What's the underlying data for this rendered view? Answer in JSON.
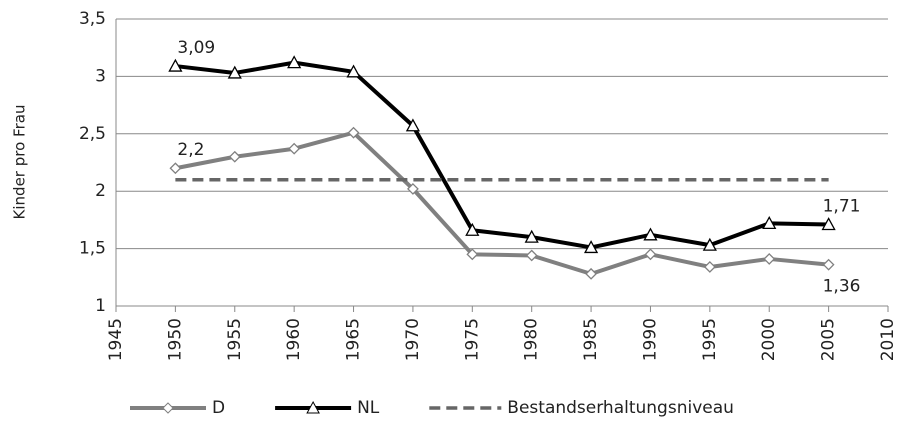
{
  "chart_data": {
    "type": "line",
    "ylabel": "Kinder pro Frau",
    "x": [
      1950,
      1955,
      1960,
      1965,
      1970,
      1975,
      1980,
      1985,
      1990,
      1995,
      2000,
      2005
    ],
    "xlim": [
      1945,
      2010
    ],
    "xticks": [
      1945,
      1950,
      1955,
      1960,
      1965,
      1970,
      1975,
      1980,
      1985,
      1990,
      1995,
      2000,
      2005,
      2010
    ],
    "ylim": [
      1,
      3.5
    ],
    "yticks": [
      1,
      {
        "value": 1.5,
        "label": "1,5"
      },
      2,
      {
        "value": 2.5,
        "label": "2,5"
      },
      3,
      {
        "value": 3.5,
        "label": "3,5"
      }
    ],
    "grid": true,
    "legend": "bottom",
    "series": [
      {
        "name": "D",
        "color": "#808080",
        "marker": "diamond",
        "dashed": false,
        "values": [
          2.2,
          2.3,
          2.37,
          2.51,
          2.02,
          1.45,
          1.44,
          1.28,
          1.45,
          1.34,
          1.41,
          1.36
        ],
        "value_labels": [
          "2,2",
          null,
          null,
          null,
          null,
          null,
          null,
          null,
          null,
          null,
          null,
          "1,36"
        ]
      },
      {
        "name": "NL",
        "color": "#000000",
        "marker": "triangle",
        "dashed": false,
        "values": [
          3.09,
          3.03,
          3.12,
          3.04,
          2.57,
          1.66,
          1.6,
          1.51,
          1.62,
          1.53,
          1.72,
          1.71
        ],
        "value_labels": [
          "3,09",
          null,
          null,
          null,
          null,
          null,
          null,
          null,
          null,
          null,
          null,
          "1,71"
        ]
      },
      {
        "name": "Bestandserhaltungsniveau",
        "color": "#666666",
        "marker": null,
        "dashed": true,
        "values": [
          2.1,
          2.1,
          2.1,
          2.1,
          2.1,
          2.1,
          2.1,
          2.1,
          2.1,
          2.1,
          2.1,
          2.1
        ]
      }
    ]
  }
}
